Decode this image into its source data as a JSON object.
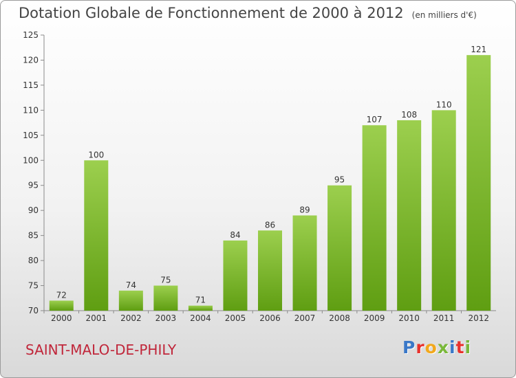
{
  "header": {
    "title": "Dotation Globale de Fonctionnement de 2000 à 2012",
    "unit": "(en milliers d'€)"
  },
  "footer": {
    "commune": "SAINT-MALO-DE-PHILY",
    "logo_letters": [
      "P",
      "r",
      "o",
      "x",
      "i",
      "t",
      "i"
    ]
  },
  "colors": {
    "bar_top": "#9ccf4e",
    "bar_bottom": "#5f9e12",
    "logo": [
      "#3a78c8",
      "#e8322d",
      "#f2a81d",
      "#7ab83a",
      "#3a78c8",
      "#e8322d",
      "#7ab83a"
    ]
  },
  "chart_data": {
    "type": "bar",
    "categories": [
      "2000",
      "2001",
      "2002",
      "2003",
      "2004",
      "2005",
      "2006",
      "2007",
      "2008",
      "2009",
      "2010",
      "2011",
      "2012"
    ],
    "values": [
      72,
      100,
      74,
      75,
      71,
      84,
      86,
      89,
      95,
      107,
      108,
      110,
      121
    ],
    "ylim": [
      70,
      125
    ],
    "yticks": [
      70,
      75,
      80,
      85,
      90,
      95,
      100,
      105,
      110,
      115,
      120,
      125
    ],
    "grid": false,
    "title": "Dotation Globale de Fonctionnement de 2000 à 2012",
    "xlabel": "",
    "ylabel": ""
  }
}
